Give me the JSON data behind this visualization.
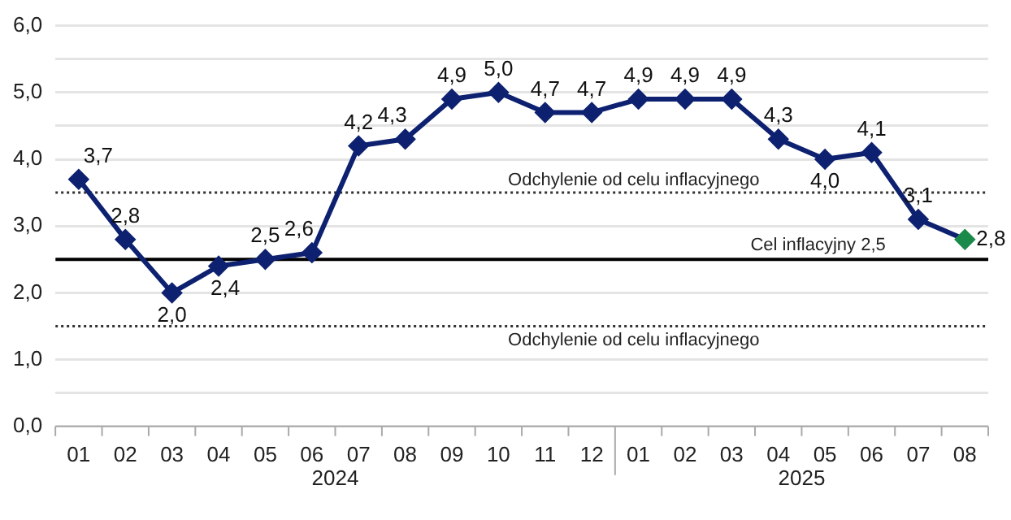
{
  "chart_data": {
    "type": "line",
    "categories": [
      "01",
      "02",
      "03",
      "04",
      "05",
      "06",
      "07",
      "08",
      "09",
      "10",
      "11",
      "12",
      "01",
      "02",
      "03",
      "04",
      "05",
      "06",
      "07",
      "08"
    ],
    "series": [
      {
        "color": "#0d2170",
        "colors": [
          "#0d2170",
          "#0d2170",
          "#0d2170",
          "#0d2170",
          "#0d2170",
          "#0d2170",
          "#0d2170",
          "#0d2170",
          "#0d2170",
          "#0d2170",
          "#0d2170",
          "#0d2170",
          "#0d2170",
          "#0d2170",
          "#0d2170",
          "#0d2170",
          "#0d2170",
          "#0d2170",
          "#0d2170",
          "#1a8a4a"
        ],
        "values": [
          3.7,
          2.8,
          2.0,
          2.4,
          2.5,
          2.6,
          4.2,
          4.3,
          4.9,
          5.0,
          4.7,
          4.7,
          4.9,
          4.9,
          4.9,
          4.3,
          4.0,
          4.1,
          3.1,
          2.8
        ],
        "value_labels": [
          "3,7",
          "2,8",
          "2,0",
          "2,4",
          "2,5",
          "2,6",
          "4,2",
          "4,3",
          "4,9",
          "5,0",
          "4,7",
          "4,7",
          "4,9",
          "4,9",
          "4,9",
          "4,3",
          "4,0",
          "4,1",
          "3,1",
          "2,8"
        ]
      }
    ],
    "ylim": [
      0,
      6
    ],
    "yticks": [
      {
        "value": 0,
        "label": "0,0"
      },
      {
        "value": 0.5,
        "label": null
      },
      {
        "value": 1,
        "label": "1,0"
      },
      {
        "value": 2,
        "label": "2,0"
      },
      {
        "value": 3,
        "label": "3,0"
      },
      {
        "value": 4,
        "label": "4,0"
      },
      {
        "value": 4.5,
        "label": null
      },
      {
        "value": 5,
        "label": "5,0"
      },
      {
        "value": 5.5,
        "label": null
      },
      {
        "value": 6,
        "label": "6,0"
      }
    ],
    "grid": "y",
    "legend": false,
    "marker": "diamond",
    "line_style": "solid",
    "ref_lines": [
      {
        "axis": "y",
        "value": 3.5,
        "label": "Odchylenie od celu inflacyjnego",
        "color": "#333333",
        "line_style": "dotted"
      },
      {
        "axis": "y",
        "value": 2.5,
        "label": "Cel inflacyjny 2,5",
        "color": "#000000",
        "line_style": "solid"
      },
      {
        "axis": "y",
        "value": 1.5,
        "label": "Odchylenie od celu inflacyjnego",
        "color": "#333333",
        "line_style": "dotted"
      }
    ],
    "annotations": [
      "2024",
      "2025"
    ]
  }
}
